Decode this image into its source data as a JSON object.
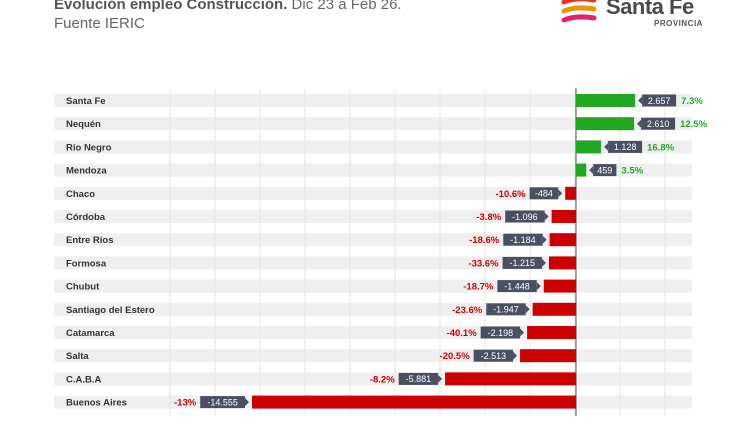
{
  "header": {
    "title_bold": "Evolución empleo Construcción.",
    "title_rest": " Dic 23 a Feb 26.",
    "subtitle": "Fuente IERIC"
  },
  "logo": {
    "name": "Santa Fe",
    "sub": "PROVINCIA",
    "colors": [
      "#e63329",
      "#f39200",
      "#e61d73"
    ]
  },
  "colors": {
    "positive": "#22a722",
    "negative": "#cc0000",
    "label_box": "#4b4f63",
    "row_band": "#efefef"
  },
  "chart_data": {
    "type": "bar",
    "orientation": "horizontal",
    "categories": [
      "Santa Fe",
      "Nequén",
      "Río Negro",
      "Mendoza",
      "Chaco",
      "Córdoba",
      "Entre Ríos",
      "Formosa",
      "Chubut",
      "Santiago del Estero",
      "Catamarca",
      "Salta",
      "C.A.B.A",
      "Buenos Aires"
    ],
    "values": [
      2657,
      2610,
      1128,
      459,
      -484,
      -1096,
      -1184,
      -1215,
      -1448,
      -1947,
      -2198,
      -2513,
      -5881,
      -14555
    ],
    "value_labels": [
      "2.657",
      "2.610",
      "1.128",
      "459",
      "-484",
      "-1.096",
      "-1.184",
      "-1.215",
      "-1.448",
      "-1.947",
      "-2.198",
      "-2.513",
      "-5.881",
      "-14.555"
    ],
    "pct_labels": [
      "7.3%",
      "12.5%",
      "16.8%",
      "3.5%",
      "-10.6%",
      "-3.8%",
      "-18.6%",
      "-33.6%",
      "-18.7%",
      "-23.6%",
      "-40.1%",
      "-20.5%",
      "-8.2%",
      "-13%"
    ],
    "xlim": [
      -16500,
      3200
    ]
  }
}
